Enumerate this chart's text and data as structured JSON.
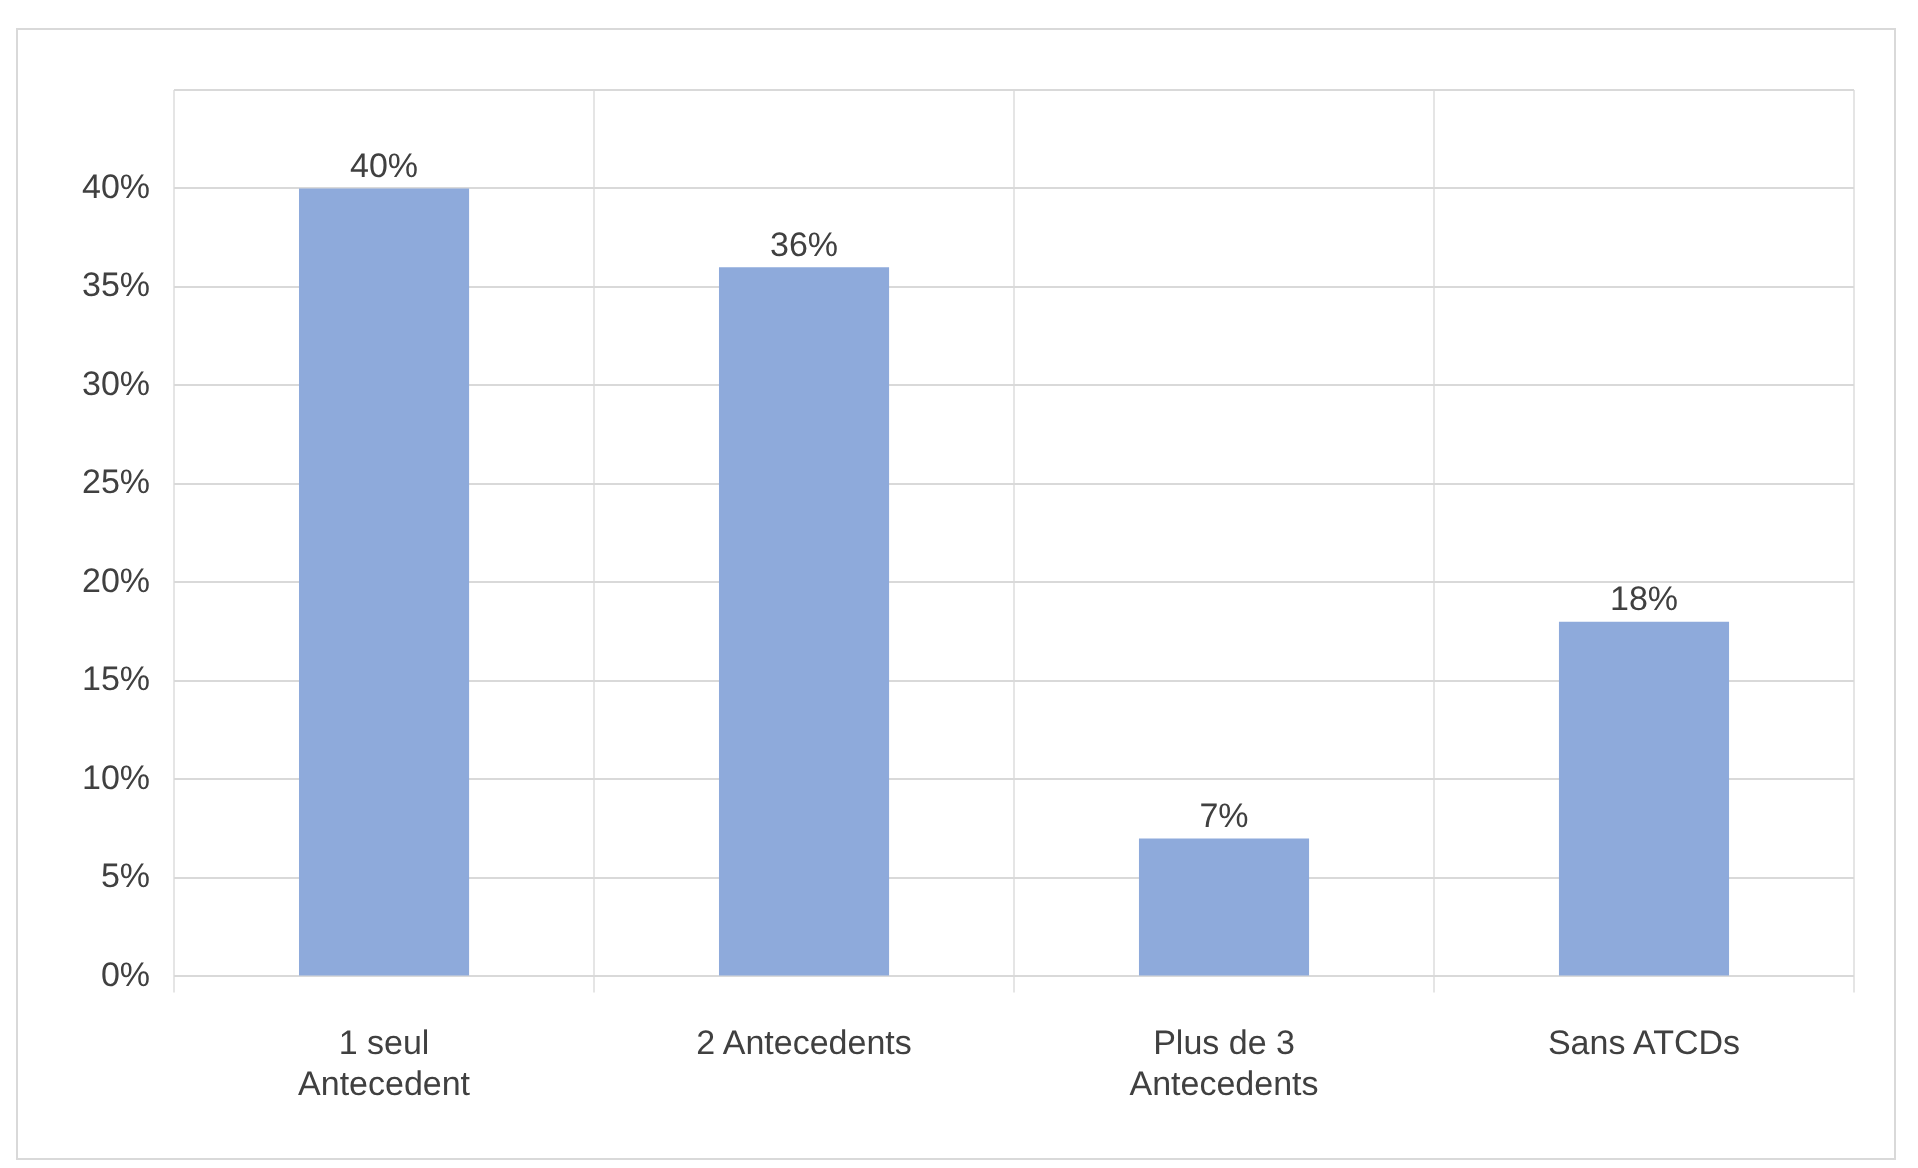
{
  "chart_data": {
    "type": "bar",
    "categories": [
      "1 seul Antecedent",
      "2 Antecedents",
      "Plus de 3 Antecedents",
      "Sans ATCDs"
    ],
    "values": [
      40,
      36,
      7,
      18
    ],
    "color": "#8eaadb",
    "value_labels": [
      "40%",
      "36%",
      "7%",
      "18%"
    ],
    "ylim": [
      0,
      45
    ],
    "yticks": [
      {
        "value": 0,
        "label": "0%"
      },
      {
        "value": 5,
        "label": "5%"
      },
      {
        "value": 10,
        "label": "10%"
      },
      {
        "value": 15,
        "label": "15%"
      },
      {
        "value": 20,
        "label": "20%"
      },
      {
        "value": 25,
        "label": "25%"
      },
      {
        "value": 30,
        "label": "30%"
      },
      {
        "value": 35,
        "label": "35%"
      },
      {
        "value": 40,
        "label": "40%"
      },
      {
        "value": 45,
        "label": null
      }
    ],
    "grid": true,
    "legend": false
  }
}
